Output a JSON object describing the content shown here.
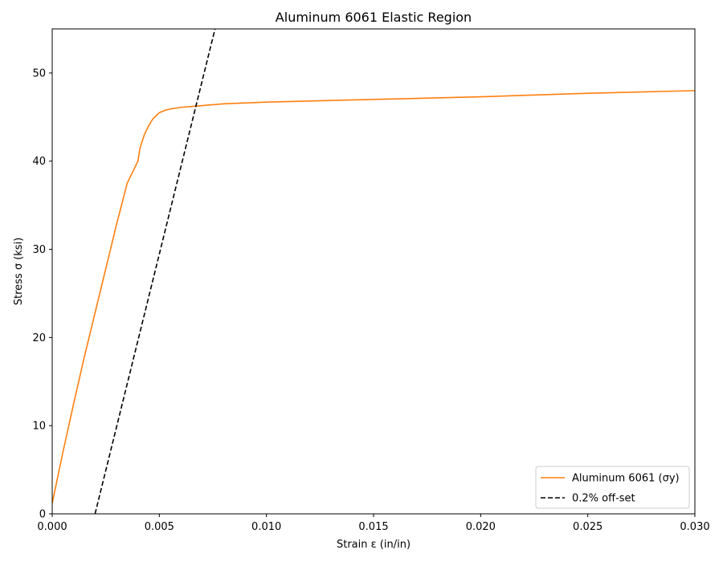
{
  "chart_data": {
    "type": "line",
    "title": "Aluminum 6061 Elastic Region",
    "xlabel": "Strain ε (in/in)",
    "ylabel": "Stress σ (ksi)",
    "xlim": [
      0.0,
      0.03
    ],
    "ylim": [
      0,
      55
    ],
    "xticks": [
      "0.000",
      "0.005",
      "0.010",
      "0.015",
      "0.020",
      "0.025",
      "0.030"
    ],
    "yticks": [
      "0",
      "10",
      "20",
      "30",
      "40",
      "50"
    ],
    "grid": false,
    "legend_position": "bottom-right",
    "series": [
      {
        "name": "Aluminum 6061 (σy)",
        "color": "#ff7f0e",
        "style": "solid",
        "x": [
          0.0,
          0.0005,
          0.001,
          0.0015,
          0.002,
          0.0025,
          0.003,
          0.0035,
          0.004,
          0.0041,
          0.0043,
          0.0045,
          0.0047,
          0.005,
          0.0053,
          0.0056,
          0.006,
          0.007,
          0.008,
          0.01,
          0.015,
          0.02,
          0.025,
          0.03
        ],
        "y": [
          1.2,
          7.0,
          12.5,
          17.8,
          22.8,
          27.8,
          32.8,
          37.5,
          40.0,
          41.5,
          43.0,
          44.0,
          44.8,
          45.5,
          45.8,
          45.95,
          46.1,
          46.3,
          46.5,
          46.7,
          47.0,
          47.3,
          47.7,
          48.0
        ]
      },
      {
        "name": "0.2% off-set",
        "color": "#000000",
        "style": "dashed",
        "x": [
          0.002,
          0.0076
        ],
        "y": [
          0,
          55
        ]
      }
    ]
  }
}
